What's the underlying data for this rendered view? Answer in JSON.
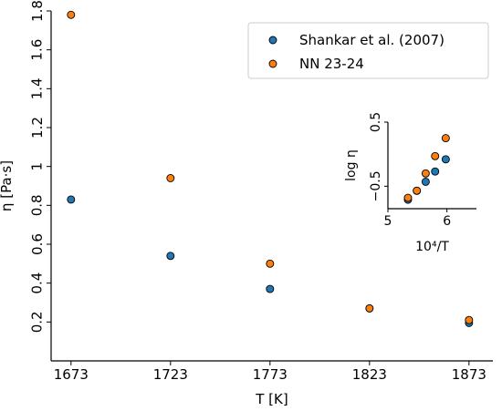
{
  "chart_data": [
    {
      "type": "scatter",
      "xlabel": "T [K]",
      "ylabel": "η [Pa·s]",
      "xlim": [
        1663,
        1885
      ],
      "ylim": [
        0.0,
        1.8
      ],
      "xticks": [
        1673,
        1723,
        1773,
        1823,
        1873
      ],
      "yticks": [
        0.2,
        0.4,
        0.6,
        0.8,
        1.0,
        1.2,
        1.4,
        1.6,
        1.8
      ],
      "legend": "top-right",
      "grid": false,
      "series": [
        {
          "name": "Shankar et al. (2007)",
          "color": "#1f77b4",
          "x": [
            1673,
            1723,
            1773,
            1823,
            1873
          ],
          "y": [
            0.83,
            0.54,
            0.37,
            0.27,
            0.195
          ]
        },
        {
          "name": "NN 23-24",
          "color": "#ff7f0e",
          "x": [
            1673,
            1723,
            1773,
            1823,
            1873
          ],
          "y": [
            1.78,
            0.94,
            0.5,
            0.27,
            0.21
          ]
        }
      ]
    },
    {
      "type": "scatter",
      "xlabel": "10⁴/T",
      "ylabel": "log η",
      "xlim": [
        5.0,
        6.5
      ],
      "ylim": [
        -0.85,
        0.5
      ],
      "xticks": [
        5,
        6
      ],
      "yticks": [
        -0.5,
        0.5
      ],
      "ytick_labels": [
        "−0.5",
        "0.5"
      ],
      "grid": false,
      "series": [
        {
          "name": "Shankar et al. (2007)",
          "color": "#1f77b4",
          "x": [
            5.34,
            5.49,
            5.64,
            5.8,
            5.98
          ],
          "y": [
            -0.71,
            -0.57,
            -0.43,
            -0.27,
            -0.08
          ]
        },
        {
          "name": "NN 23-24",
          "color": "#ff7f0e",
          "x": [
            5.34,
            5.49,
            5.64,
            5.8,
            5.98
          ],
          "y": [
            -0.68,
            -0.57,
            -0.3,
            -0.03,
            0.25
          ]
        }
      ]
    }
  ]
}
